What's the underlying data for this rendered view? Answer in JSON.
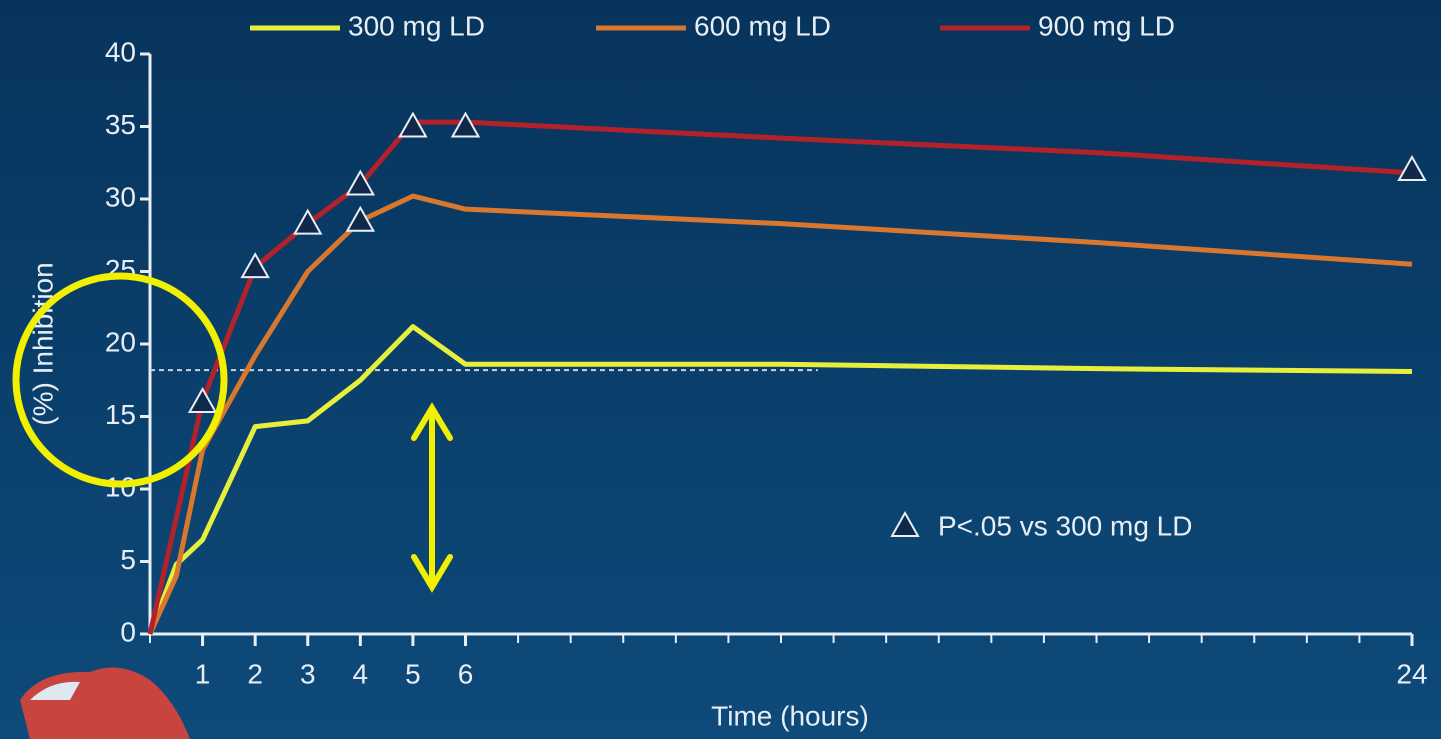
{
  "chart_data": {
    "type": "line",
    "xlabel": "Time (hours)",
    "ylabel": "(%) Inhibition",
    "x": [
      0,
      0.5,
      1,
      2,
      3,
      4,
      5,
      6,
      12,
      18,
      24
    ],
    "series": [
      {
        "name": "300 mg LD",
        "color": "#e6f03c",
        "values": [
          0,
          4.8,
          6.5,
          14.3,
          14.7,
          17.5,
          21.2,
          18.6,
          18.6,
          18.3,
          18.1
        ]
      },
      {
        "name": "600 mg LD",
        "color": "#d9772e",
        "values": [
          0,
          4,
          12.7,
          19.2,
          25,
          28.5,
          30.2,
          29.3,
          28.3,
          27,
          25.5
        ]
      },
      {
        "name": "900 mg LD",
        "color": "#b3222b",
        "values": [
          0,
          8,
          16.1,
          25.3,
          28.3,
          31,
          35.3,
          35.3,
          34.2,
          33.2,
          31.8
        ]
      }
    ],
    "markers": {
      "label": "P<.05 vs 300 mg LD",
      "color": "#10294a",
      "x": [
        1,
        2,
        3,
        4,
        4,
        5,
        6,
        24
      ],
      "y": [
        16,
        25.3,
        28.3,
        31,
        28.5,
        35,
        35,
        32
      ]
    },
    "reference_line": {
      "y": 18.2,
      "x_end": 12.7
    },
    "xlim": [
      0,
      24
    ],
    "xticks": [
      1,
      2,
      3,
      4,
      5,
      6,
      24
    ],
    "ylim": [
      0,
      40
    ],
    "yticks": [
      0,
      5,
      10,
      15,
      20,
      25,
      30,
      35,
      40
    ]
  }
}
